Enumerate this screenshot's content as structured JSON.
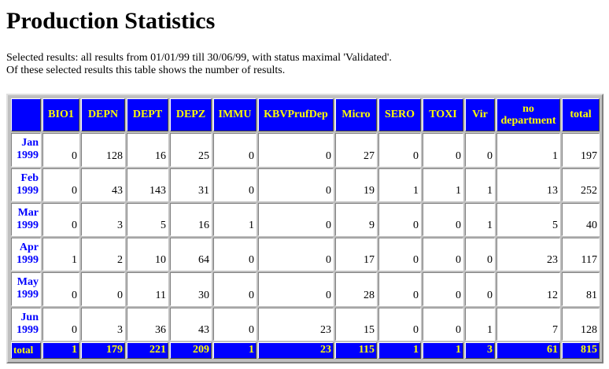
{
  "page": {
    "title": "Production Statistics",
    "line1": "Selected results: all results from 01/01/99 till 30/06/99, with status maximal 'Validated'.",
    "line2": "Of these selected results this table shows the number of results."
  },
  "table": {
    "headers": [
      "BIO1",
      "DEPN",
      "DEPT",
      "DEPZ",
      "IMMU",
      "KBVPrufDep",
      "Micro",
      "SERO",
      "TOXI",
      "Vir",
      "no department",
      "total"
    ],
    "rows": [
      {
        "label": "Jan 1999",
        "values": [
          "0",
          "128",
          "16",
          "25",
          "0",
          "0",
          "27",
          "0",
          "0",
          "0",
          "1",
          "197"
        ]
      },
      {
        "label": "Feb 1999",
        "values": [
          "0",
          "43",
          "143",
          "31",
          "0",
          "0",
          "19",
          "1",
          "1",
          "1",
          "13",
          "252"
        ]
      },
      {
        "label": "Mar 1999",
        "values": [
          "0",
          "3",
          "5",
          "16",
          "1",
          "0",
          "9",
          "0",
          "0",
          "1",
          "5",
          "40"
        ]
      },
      {
        "label": "Apr 1999",
        "values": [
          "1",
          "2",
          "10",
          "64",
          "0",
          "0",
          "17",
          "0",
          "0",
          "0",
          "23",
          "117"
        ]
      },
      {
        "label": "May 1999",
        "values": [
          "0",
          "0",
          "11",
          "30",
          "0",
          "0",
          "28",
          "0",
          "0",
          "0",
          "12",
          "81"
        ]
      },
      {
        "label": "Jun 1999",
        "values": [
          "0",
          "3",
          "36",
          "43",
          "0",
          "23",
          "15",
          "0",
          "0",
          "1",
          "7",
          "128"
        ]
      }
    ],
    "totals": {
      "label": "total",
      "values": [
        "1",
        "179",
        "221",
        "209",
        "1",
        "23",
        "115",
        "1",
        "1",
        "3",
        "61",
        "815"
      ]
    }
  },
  "colors": {
    "header_bg": "#0000ff",
    "header_text": "#ffff00",
    "row_label_text": "#0000ff",
    "frame": "#c0c0c0"
  }
}
